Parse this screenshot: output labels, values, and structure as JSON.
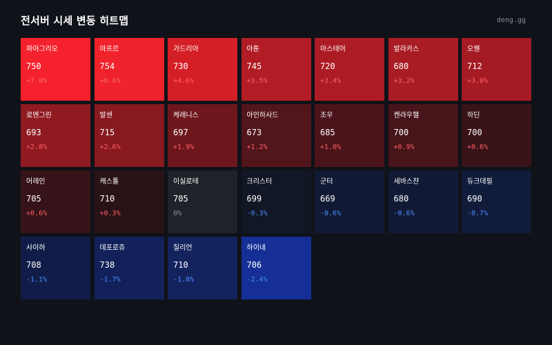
{
  "header": {
    "title": "전서버 시세 변동 히트맵",
    "brand": "deng.gg"
  },
  "tiles": [
    {
      "name": "파아그리오",
      "price": "750",
      "change": "+7.0%",
      "bg": "#f5222d",
      "color": "#ff6b6b"
    },
    {
      "name": "마프르",
      "price": "754",
      "change": "+6.6%",
      "bg": "#f0222b",
      "color": "#ff6b6b"
    },
    {
      "name": "가드리아",
      "price": "730",
      "change": "+4.6%",
      "bg": "#d41f27",
      "color": "#ff5f66"
    },
    {
      "name": "아툰",
      "price": "745",
      "change": "+3.5%",
      "bg": "#b21d25",
      "color": "#ff5f66"
    },
    {
      "name": "아스테어",
      "price": "720",
      "change": "+3.4%",
      "bg": "#ad1c24",
      "color": "#ff5f66"
    },
    {
      "name": "발라카스",
      "price": "680",
      "change": "+3.2%",
      "bg": "#a91c24",
      "color": "#ff5f66"
    },
    {
      "name": "오웬",
      "price": "712",
      "change": "+3.0%",
      "bg": "#a51b23",
      "color": "#ff5f66"
    },
    {
      "name": "로엔그린",
      "price": "693",
      "change": "+2.8%",
      "bg": "#8f1a21",
      "color": "#ff5f66"
    },
    {
      "name": "발센",
      "price": "715",
      "change": "+2.6%",
      "bg": "#87191f",
      "color": "#ff5f66"
    },
    {
      "name": "케레니스",
      "price": "697",
      "change": "+1.9%",
      "bg": "#6d171d",
      "color": "#ff5f66"
    },
    {
      "name": "아인하사드",
      "price": "673",
      "change": "+1.2%",
      "bg": "#52151b",
      "color": "#ff5f66"
    },
    {
      "name": "조우",
      "price": "685",
      "change": "+1.0%",
      "bg": "#4b141a",
      "color": "#ff5f66"
    },
    {
      "name": "켄라우헬",
      "price": "700",
      "change": "+0.9%",
      "bg": "#461419",
      "color": "#ff5f66"
    },
    {
      "name": "하딘",
      "price": "700",
      "change": "+0.6%",
      "bg": "#3a1318",
      "color": "#ff5f66"
    },
    {
      "name": "어레인",
      "price": "705",
      "change": "+0.6%",
      "bg": "#361318",
      "color": "#ff5f66"
    },
    {
      "name": "캐스톨",
      "price": "710",
      "change": "+0.3%",
      "bg": "#2a1317",
      "color": "#ff5f66"
    },
    {
      "name": "이실로테",
      "price": "705",
      "change": "0%",
      "bg": "#1e2329",
      "color": "#8a8f99"
    },
    {
      "name": "크리스터",
      "price": "699",
      "change": "-0.3%",
      "bg": "#121726",
      "color": "#4a8cff"
    },
    {
      "name": "군터",
      "price": "669",
      "change": "-0.6%",
      "bg": "#111a35",
      "color": "#4a8cff"
    },
    {
      "name": "세바스챤",
      "price": "680",
      "change": "-0.6%",
      "bg": "#111a35",
      "color": "#4a8cff"
    },
    {
      "name": "듀크데필",
      "price": "690",
      "change": "-0.7%",
      "bg": "#111b3a",
      "color": "#4a8cff"
    },
    {
      "name": "사이하",
      "price": "708",
      "change": "-1.1%",
      "bg": "#111d48",
      "color": "#4a8cff"
    },
    {
      "name": "데포로쥬",
      "price": "738",
      "change": "-1.7%",
      "bg": "#12215a",
      "color": "#4a8cff"
    },
    {
      "name": "질리언",
      "price": "710",
      "change": "-1.8%",
      "bg": "#13235e",
      "color": "#4a8cff"
    },
    {
      "name": "하이네",
      "price": "706",
      "change": "-2.4%",
      "bg": "#152f96",
      "color": "#4a8cff"
    }
  ]
}
